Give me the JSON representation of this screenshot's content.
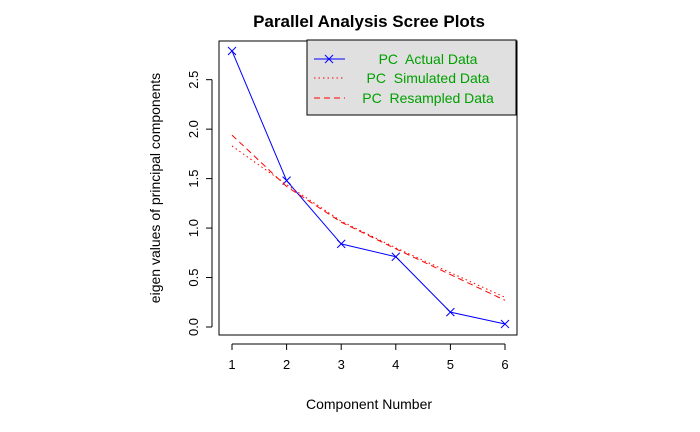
{
  "chart_data": {
    "type": "line",
    "title": "Parallel Analysis Scree Plots",
    "xlabel": "Component Number",
    "ylabel": "eigen values of principal components",
    "x": [
      1,
      2,
      3,
      4,
      5,
      6
    ],
    "xlim": [
      1,
      6
    ],
    "ylim": [
      0,
      2.8
    ],
    "xticks": [
      "1",
      "2",
      "3",
      "4",
      "5",
      "6"
    ],
    "yticks": [
      "0.0",
      "0.5",
      "1.0",
      "1.5",
      "2.0",
      "2.5"
    ],
    "grid": false,
    "legend_position": "top-right",
    "series": [
      {
        "name": "PC  Actual Data",
        "values": [
          2.79,
          1.48,
          0.84,
          0.71,
          0.15,
          0.03
        ],
        "color": "#0000ff",
        "line": "solid",
        "marker": "x"
      },
      {
        "name": "PC  Simulated Data",
        "values": [
          1.83,
          1.44,
          1.07,
          0.8,
          0.55,
          0.3
        ],
        "color": "#ff0000",
        "line": "dotted",
        "marker": "none"
      },
      {
        "name": "PC  Resampled Data",
        "values": [
          1.94,
          1.42,
          1.06,
          0.79,
          0.53,
          0.27
        ],
        "color": "#ff0000",
        "line": "dashed",
        "marker": "none"
      }
    ],
    "legend_text_color": "#00a000",
    "legend_background": "#e0e0e0"
  }
}
